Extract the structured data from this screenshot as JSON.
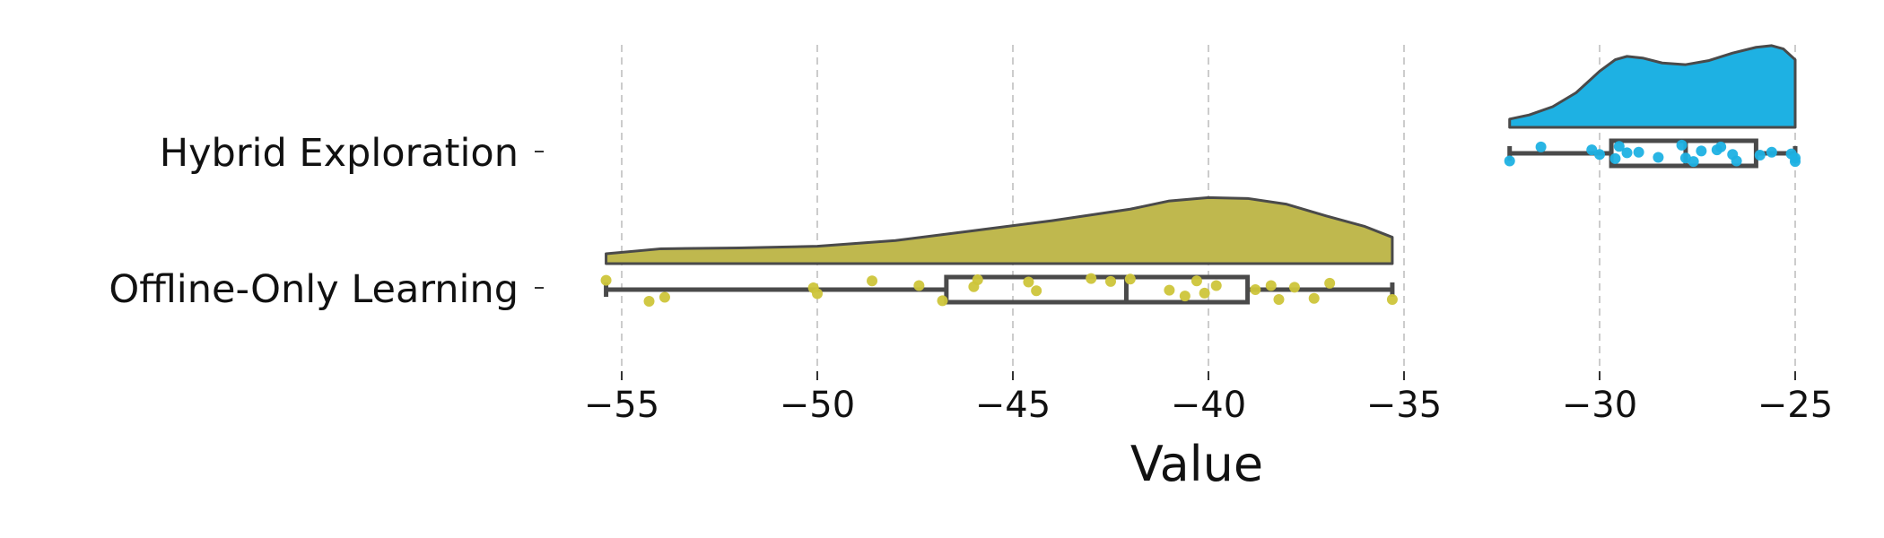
{
  "chart_data": {
    "type": "raincloud",
    "title": "",
    "xlabel": "Value",
    "ylabel": "",
    "xlim": [
      -56.5,
      -24.5
    ],
    "xticks": [
      -55,
      -50,
      -45,
      -40,
      -35,
      -30,
      -25
    ],
    "xtick_labels": [
      "−55",
      "−50",
      "−45",
      "−40",
      "−35",
      "−30",
      "−25"
    ],
    "grid": "vertical dashed",
    "legend": "none",
    "groups": [
      {
        "name": "Hybrid Exploration",
        "color": "#1eb1e3",
        "box": {
          "min": -32.3,
          "q1": -29.7,
          "median": -27.8,
          "q3": -26.0,
          "max": -25.0
        },
        "density": [
          [
            -32.3,
            0.1
          ],
          [
            -31.8,
            0.15
          ],
          [
            -31.2,
            0.25
          ],
          [
            -30.6,
            0.42
          ],
          [
            -30.0,
            0.68
          ],
          [
            -29.6,
            0.82
          ],
          [
            -29.3,
            0.86
          ],
          [
            -28.9,
            0.84
          ],
          [
            -28.4,
            0.78
          ],
          [
            -27.8,
            0.76
          ],
          [
            -27.2,
            0.81
          ],
          [
            -26.6,
            0.9
          ],
          [
            -26.0,
            0.97
          ],
          [
            -25.6,
            0.99
          ],
          [
            -25.3,
            0.95
          ],
          [
            -25.0,
            0.82
          ]
        ],
        "points": [
          [
            -32.3,
            0.65
          ],
          [
            -31.5,
            -0.55
          ],
          [
            -30.2,
            -0.3
          ],
          [
            -30.0,
            0.1
          ],
          [
            -29.6,
            0.45
          ],
          [
            -29.5,
            -0.6
          ],
          [
            -29.3,
            -0.05
          ],
          [
            -29.0,
            -0.1
          ],
          [
            -28.5,
            0.35
          ],
          [
            -27.9,
            -0.7
          ],
          [
            -27.8,
            0.4
          ],
          [
            -27.6,
            0.7
          ],
          [
            -27.4,
            -0.2
          ],
          [
            -27.0,
            -0.3
          ],
          [
            -26.9,
            -0.55
          ],
          [
            -26.6,
            0.1
          ],
          [
            -26.5,
            0.65
          ],
          [
            -25.9,
            0.15
          ],
          [
            -25.6,
            -0.1
          ],
          [
            -25.1,
            0.05
          ],
          [
            -25.0,
            0.7
          ],
          [
            -25.0,
            0.4
          ]
        ]
      },
      {
        "name": "Offline-Only Learning",
        "color": "#cdc53a",
        "fill": "#bfb84e",
        "box": {
          "min": -55.4,
          "q1": -46.7,
          "median": -42.1,
          "q3": -39.0,
          "max": -35.3
        },
        "density": [
          [
            -55.4,
            0.12
          ],
          [
            -54.0,
            0.18
          ],
          [
            -52.0,
            0.19
          ],
          [
            -50.0,
            0.21
          ],
          [
            -48.0,
            0.28
          ],
          [
            -46.0,
            0.4
          ],
          [
            -44.0,
            0.52
          ],
          [
            -42.0,
            0.66
          ],
          [
            -41.0,
            0.76
          ],
          [
            -40.0,
            0.8
          ],
          [
            -39.0,
            0.79
          ],
          [
            -38.0,
            0.72
          ],
          [
            -37.0,
            0.58
          ],
          [
            -36.0,
            0.45
          ],
          [
            -35.3,
            0.32
          ]
        ],
        "points": [
          [
            -55.4,
            -0.8
          ],
          [
            -54.3,
            1.0
          ],
          [
            -53.9,
            0.65
          ],
          [
            -50.1,
            -0.15
          ],
          [
            -50.0,
            0.35
          ],
          [
            -48.6,
            -0.75
          ],
          [
            -47.4,
            -0.35
          ],
          [
            -46.8,
            0.95
          ],
          [
            -46.0,
            -0.25
          ],
          [
            -45.9,
            -0.85
          ],
          [
            -44.6,
            -0.65
          ],
          [
            -44.4,
            0.1
          ],
          [
            -43.0,
            -0.95
          ],
          [
            -42.5,
            -0.7
          ],
          [
            -42.0,
            -0.9
          ],
          [
            -41.0,
            0.05
          ],
          [
            -40.6,
            0.55
          ],
          [
            -40.3,
            -0.75
          ],
          [
            -40.1,
            0.3
          ],
          [
            -39.8,
            -0.35
          ],
          [
            -38.8,
            0.0
          ],
          [
            -38.4,
            -0.35
          ],
          [
            -38.2,
            0.85
          ],
          [
            -37.8,
            -0.2
          ],
          [
            -37.3,
            0.75
          ],
          [
            -36.9,
            -0.55
          ],
          [
            -35.3,
            0.85
          ]
        ]
      }
    ]
  }
}
